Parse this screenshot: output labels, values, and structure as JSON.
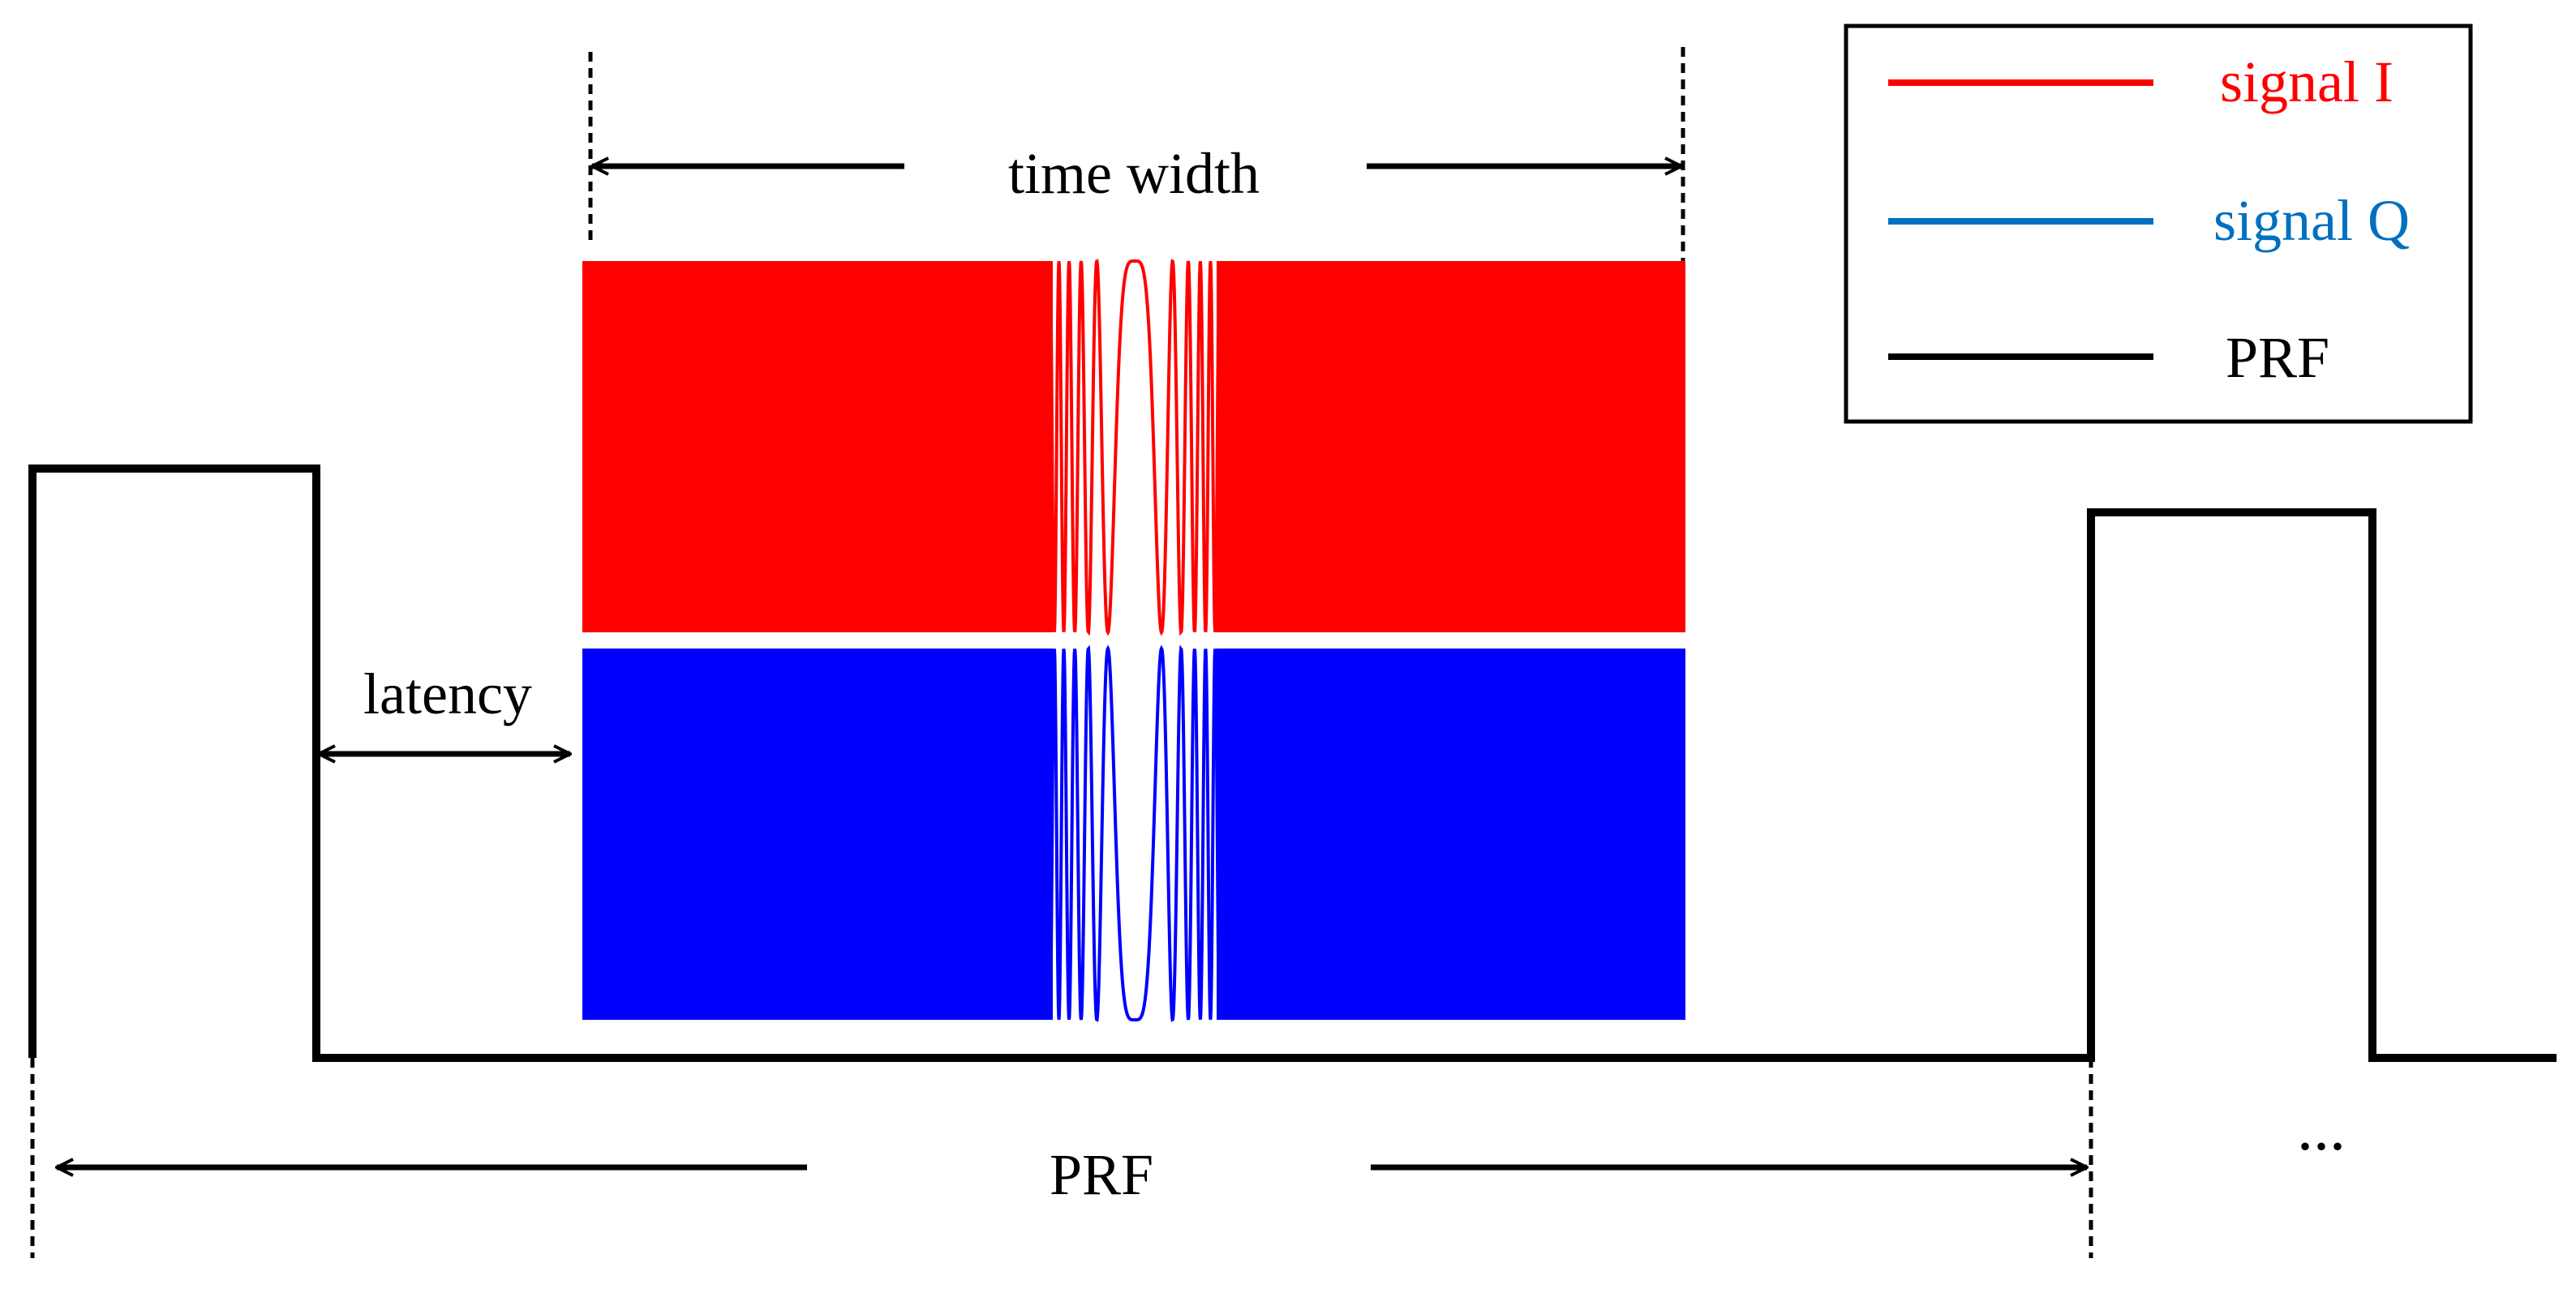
{
  "legend": {
    "items": [
      {
        "label": "signal I",
        "color": "#ff0000"
      },
      {
        "label": "signal Q",
        "color": "#0070c0"
      },
      {
        "label": "PRF",
        "color": "#000000"
      }
    ]
  },
  "labels": {
    "time_width": "time width",
    "latency": "latency",
    "prf": "PRF",
    "ellipsis": "..."
  },
  "colors": {
    "signal_i_fill": "#ff0000",
    "signal_q_fill": "#0000ff",
    "prf_line": "#000000",
    "background": "#ffffff"
  }
}
